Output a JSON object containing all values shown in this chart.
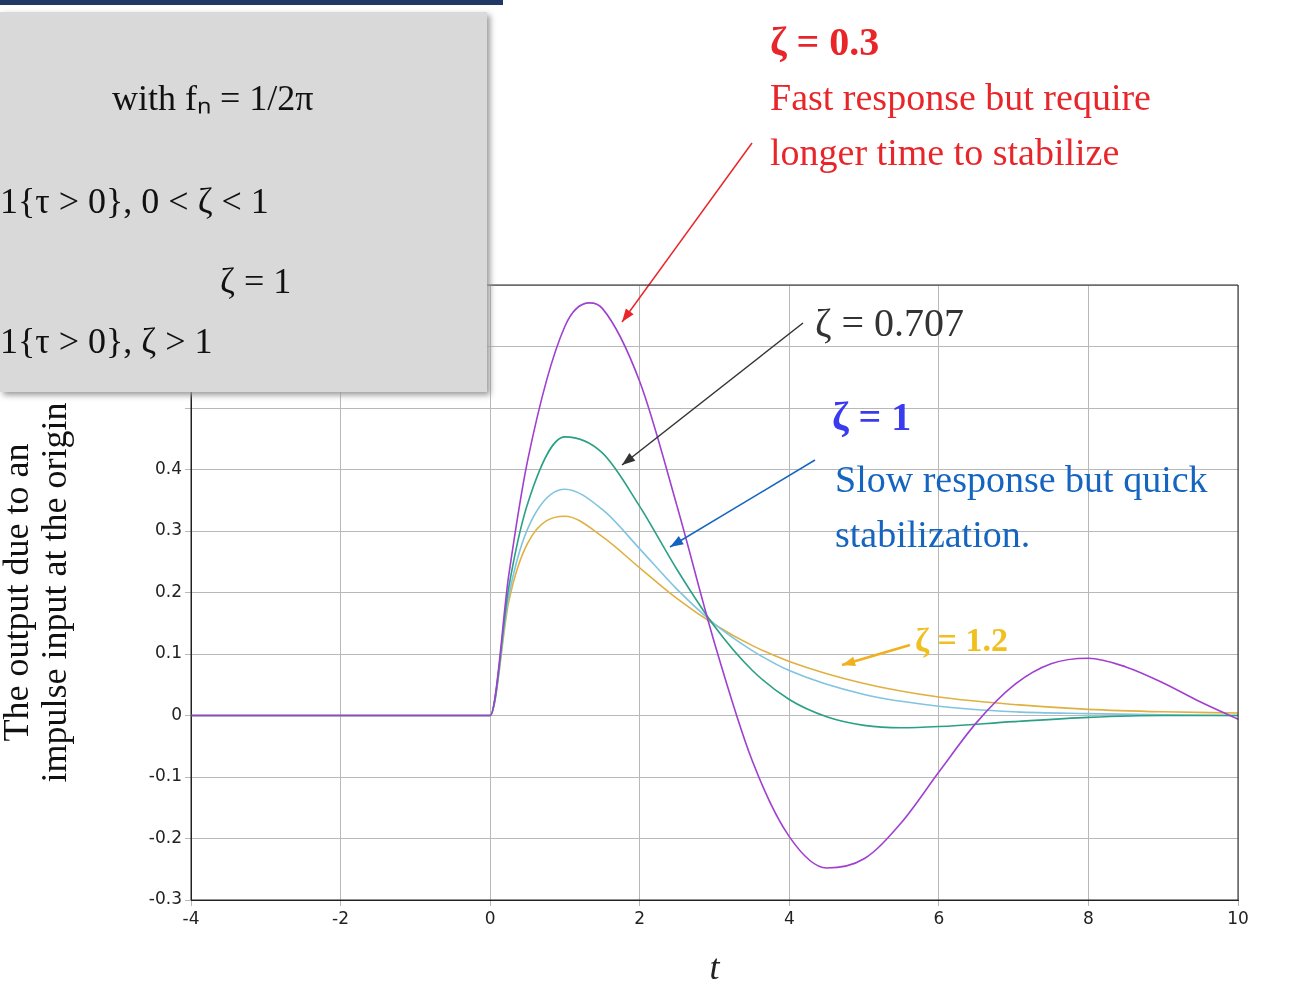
{
  "chart_data": {
    "type": "line",
    "xlabel": "t",
    "ylabel": "The output due to an\nimpulse input at the origin",
    "xlim": [
      -4,
      10
    ],
    "xticks": [
      -4,
      -2,
      0,
      2,
      4,
      6,
      8,
      10
    ],
    "ylim": [
      -0.3,
      0.7
    ],
    "yticks": [
      -0.3,
      -0.2,
      -0.1,
      0,
      0.1,
      0.2,
      0.3,
      0.4,
      {
        "value": 0.5,
        "label": null
      },
      {
        "value": 0.6,
        "label": null
      },
      {
        "value": 0.7,
        "label": null
      }
    ],
    "grid": true,
    "legend": false,
    "marker": "none",
    "line_style": "solid",
    "series": [
      {
        "color": "#a040d0",
        "x": [
          -4,
          0,
          0.25,
          0.5,
          1,
          1.33,
          1.5,
          2,
          2.5,
          3,
          3.5,
          4,
          4.5,
          5,
          5.5,
          6,
          6.5,
          7,
          7.5,
          8,
          8.5,
          9,
          9.5,
          10
        ],
        "values": [
          0,
          0,
          0.229,
          0.414,
          0.633,
          0.671,
          0.662,
          0.543,
          0.34,
          0.118,
          -0.072,
          -0.197,
          -0.248,
          -0.233,
          -0.174,
          -0.092,
          -0.012,
          0.049,
          0.084,
          0.093,
          0.079,
          0.053,
          0.022,
          -0.006
        ]
      },
      {
        "color": "#2aa084",
        "x": [
          -4,
          0,
          0.25,
          0.5,
          1,
          1.5,
          2,
          2.5,
          3,
          3.5,
          4,
          4.5,
          5,
          5.5,
          6,
          7,
          8,
          9,
          10
        ],
        "values": [
          0,
          0,
          0.209,
          0.344,
          0.453,
          0.427,
          0.34,
          0.237,
          0.145,
          0.074,
          0.026,
          -0.002,
          -0.016,
          -0.02,
          -0.018,
          -0.01,
          -0.003,
          0,
          0
        ]
      },
      {
        "color": "#80c4e0",
        "x": [
          -4,
          0,
          0.25,
          0.5,
          1,
          1.5,
          2,
          2.5,
          3,
          3.5,
          4,
          5,
          6,
          7,
          8,
          9,
          10
        ],
        "values": [
          0,
          0,
          0.195,
          0.303,
          0.368,
          0.335,
          0.271,
          0.205,
          0.149,
          0.106,
          0.073,
          0.034,
          0.015,
          0.006,
          0.003,
          0.001,
          0
        ]
      },
      {
        "color": "#e0b040",
        "x": [
          -4,
          0,
          0.25,
          0.5,
          1,
          1.5,
          2,
          2.5,
          3,
          3.5,
          4,
          5,
          6,
          7,
          8,
          9,
          10
        ],
        "values": [
          0,
          0,
          0.186,
          0.28,
          0.324,
          0.291,
          0.24,
          0.19,
          0.148,
          0.114,
          0.088,
          0.052,
          0.03,
          0.018,
          0.01,
          0.006,
          0.004
        ]
      }
    ],
    "annotations": [
      "ζ = 0.3",
      "Fast response but require longer time to stabilize",
      "ζ = 0.707",
      "ζ = 1",
      "Slow response but quick stabilization.",
      "ζ = 1.2",
      "with fₙ = 1/2π",
      "1{τ > 0},   0 < ζ < 1",
      "ζ = 1",
      "1{τ > 0},   ζ > 1"
    ]
  }
}
